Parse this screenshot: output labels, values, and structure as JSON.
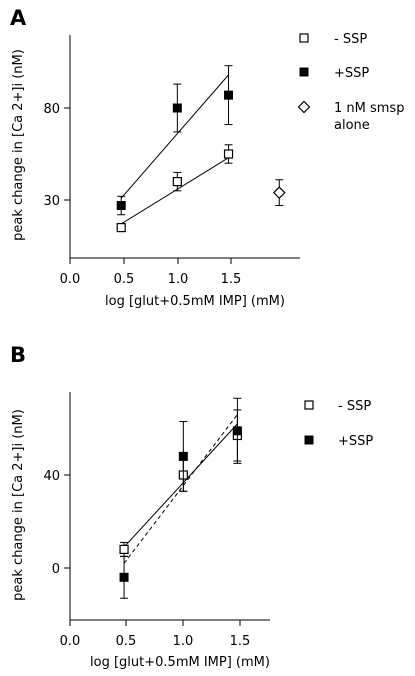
{
  "chart_data": [
    {
      "type": "scatter",
      "panel_label": "A",
      "xlabel": "log [glut+0.5mM IMP] (mM)",
      "ylabel": "peak change in [Ca 2+]i (nM)",
      "x_ticks": [
        "0.0",
        "0.5",
        "1.0",
        "1.5"
      ],
      "y_ticks": [
        "30",
        "80"
      ],
      "xlim": [
        0.0,
        2.05
      ],
      "ylim": [
        0,
        125
      ],
      "series": [
        {
          "name": "- SSP",
          "marker": "square-open",
          "x": [
            0.477,
            1.0,
            1.477
          ],
          "y": [
            15,
            40,
            55
          ],
          "err": [
            2,
            5,
            5
          ],
          "fit": "solid"
        },
        {
          "name": "+SSP",
          "marker": "square-filled",
          "x": [
            0.477,
            1.0,
            1.477
          ],
          "y": [
            27,
            80,
            87
          ],
          "err": [
            5,
            13,
            16
          ],
          "fit": "solid"
        },
        {
          "name": "1 nM smsp alone",
          "marker": "diamond-open",
          "x": [
            1.95
          ],
          "y": [
            34
          ],
          "err": [
            7
          ],
          "fit": "none"
        }
      ],
      "fit_lines": [
        {
          "series": "- SSP",
          "from": [
            0.477,
            17
          ],
          "to": [
            1.477,
            53
          ]
        },
        {
          "series": "+SSP",
          "from": [
            0.477,
            31
          ],
          "to": [
            1.477,
            98
          ]
        }
      ],
      "legend": [
        {
          "label": "- SSP",
          "marker": "square-open"
        },
        {
          "label": "+SSP",
          "marker": "square-filled"
        },
        {
          "label_lines": [
            "1 nM smsp",
            "alone"
          ],
          "marker": "diamond-open"
        }
      ]
    },
    {
      "type": "scatter",
      "panel_label": "B",
      "xlabel": "log [glut+0.5mM IMP] (mM)",
      "ylabel": "peak change in [Ca 2+]i (nM)",
      "x_ticks": [
        "0.0",
        "0.5",
        "1.0",
        "1.5"
      ],
      "y_ticks": [
        "0",
        "40"
      ],
      "xlim": [
        0.0,
        1.55
      ],
      "ylim": [
        -22,
        78
      ],
      "series": [
        {
          "name": "- SSP",
          "marker": "square-open",
          "x": [
            0.477,
            1.0,
            1.477
          ],
          "y": [
            8,
            40,
            57
          ],
          "err": [
            3,
            7,
            11
          ],
          "fit": "solid"
        },
        {
          "name": "+SSP",
          "marker": "square-filled",
          "x": [
            0.477,
            1.0,
            1.477
          ],
          "y": [
            -4,
            48,
            59
          ],
          "err": [
            9,
            15,
            14
          ],
          "fit": "dashed"
        }
      ],
      "fit_lines": [
        {
          "series": "- SSP",
          "from": [
            0.477,
            9
          ],
          "to": [
            1.477,
            62
          ],
          "style": "solid"
        },
        {
          "series": "+SSP",
          "from": [
            0.477,
            2
          ],
          "to": [
            1.477,
            66
          ],
          "style": "dashed"
        }
      ],
      "legend": [
        {
          "label": "- SSP",
          "marker": "square-open"
        },
        {
          "label": "+SSP",
          "marker": "square-filled"
        }
      ]
    }
  ]
}
